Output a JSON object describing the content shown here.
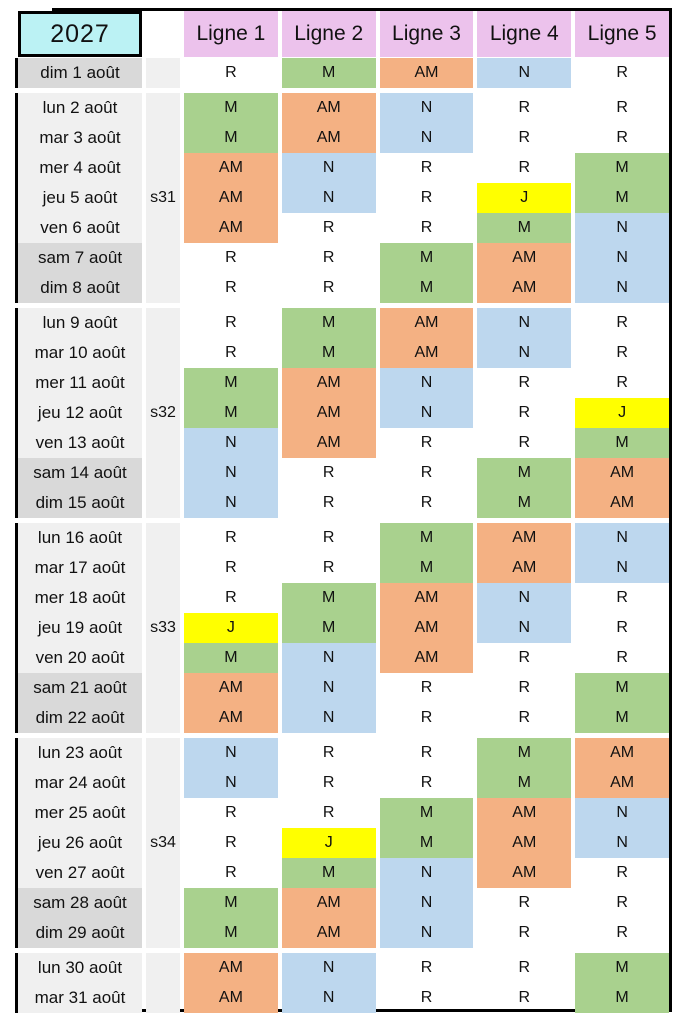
{
  "title": {
    "year": "2027"
  },
  "columns": [
    "Ligne 1",
    "Ligne 2",
    "Ligne 3",
    "Ligne 4",
    "Ligne 5"
  ],
  "colors": {
    "year_bg": "#BBF2F4",
    "header_bg": "#ECC2EC",
    "weekday_bg": "#F0F0F0",
    "weekend_bg": "#D9D9D9",
    "weekcol_bg": "#F0F0F0",
    "border": "#000000",
    "shift_R": "#FFFFFF",
    "shift_M": "#A9D18E",
    "shift_AM": "#F4B183",
    "shift_N": "#BDD7EE",
    "shift_J": "#FFFF00"
  },
  "schedule": {
    "type": "table",
    "shift_codes_visible": [
      "R",
      "M",
      "AM",
      "N",
      "J"
    ],
    "sections": [
      {
        "rows": [
          {
            "date": "dim 1 août",
            "week": "",
            "weekend": true,
            "values": [
              "R",
              "M",
              "AM",
              "N",
              "R"
            ]
          }
        ]
      },
      {
        "rows": [
          {
            "date": "lun 2 août",
            "week": "",
            "weekend": false,
            "values": [
              "M",
              "AM",
              "N",
              "R",
              "R"
            ]
          },
          {
            "date": "mar 3 août",
            "week": "",
            "weekend": false,
            "values": [
              "M",
              "AM",
              "N",
              "R",
              "R"
            ]
          },
          {
            "date": "mer 4 août",
            "week": "",
            "weekend": false,
            "values": [
              "AM",
              "N",
              "R",
              "R",
              "M"
            ]
          },
          {
            "date": "jeu 5 août",
            "week": "s31",
            "weekend": false,
            "values": [
              "AM",
              "N",
              "R",
              "J",
              "M"
            ]
          },
          {
            "date": "ven 6 août",
            "week": "",
            "weekend": false,
            "values": [
              "AM",
              "R",
              "R",
              "M",
              "N"
            ]
          },
          {
            "date": "sam 7 août",
            "week": "",
            "weekend": true,
            "values": [
              "R",
              "R",
              "M",
              "AM",
              "N"
            ]
          },
          {
            "date": "dim 8 août",
            "week": "",
            "weekend": true,
            "values": [
              "R",
              "R",
              "M",
              "AM",
              "N"
            ]
          }
        ]
      },
      {
        "rows": [
          {
            "date": "lun 9 août",
            "week": "",
            "weekend": false,
            "values": [
              "R",
              "M",
              "AM",
              "N",
              "R"
            ]
          },
          {
            "date": "mar 10 août",
            "week": "",
            "weekend": false,
            "values": [
              "R",
              "M",
              "AM",
              "N",
              "R"
            ]
          },
          {
            "date": "mer 11 août",
            "week": "",
            "weekend": false,
            "values": [
              "M",
              "AM",
              "N",
              "R",
              "R"
            ]
          },
          {
            "date": "jeu 12 août",
            "week": "s32",
            "weekend": false,
            "values": [
              "M",
              "AM",
              "N",
              "R",
              "J"
            ]
          },
          {
            "date": "ven 13 août",
            "week": "",
            "weekend": false,
            "values": [
              "N",
              "AM",
              "R",
              "R",
              "M"
            ]
          },
          {
            "date": "sam 14 août",
            "week": "",
            "weekend": true,
            "values": [
              "N",
              "R",
              "R",
              "M",
              "AM"
            ]
          },
          {
            "date": "dim 15 août",
            "week": "",
            "weekend": true,
            "values": [
              "N",
              "R",
              "R",
              "M",
              "AM"
            ]
          }
        ]
      },
      {
        "rows": [
          {
            "date": "lun 16 août",
            "week": "",
            "weekend": false,
            "values": [
              "R",
              "R",
              "M",
              "AM",
              "N"
            ]
          },
          {
            "date": "mar 17 août",
            "week": "",
            "weekend": false,
            "values": [
              "R",
              "R",
              "M",
              "AM",
              "N"
            ]
          },
          {
            "date": "mer 18 août",
            "week": "",
            "weekend": false,
            "values": [
              "R",
              "M",
              "AM",
              "N",
              "R"
            ]
          },
          {
            "date": "jeu 19 août",
            "week": "s33",
            "weekend": false,
            "values": [
              "J",
              "M",
              "AM",
              "N",
              "R"
            ]
          },
          {
            "date": "ven 20 août",
            "week": "",
            "weekend": false,
            "values": [
              "M",
              "N",
              "AM",
              "R",
              "R"
            ]
          },
          {
            "date": "sam 21 août",
            "week": "",
            "weekend": true,
            "values": [
              "AM",
              "N",
              "R",
              "R",
              "M"
            ]
          },
          {
            "date": "dim 22 août",
            "week": "",
            "weekend": true,
            "values": [
              "AM",
              "N",
              "R",
              "R",
              "M"
            ]
          }
        ]
      },
      {
        "rows": [
          {
            "date": "lun 23 août",
            "week": "",
            "weekend": false,
            "values": [
              "N",
              "R",
              "R",
              "M",
              "AM"
            ]
          },
          {
            "date": "mar 24 août",
            "week": "",
            "weekend": false,
            "values": [
              "N",
              "R",
              "R",
              "M",
              "AM"
            ]
          },
          {
            "date": "mer 25 août",
            "week": "",
            "weekend": false,
            "values": [
              "R",
              "R",
              "M",
              "AM",
              "N"
            ]
          },
          {
            "date": "jeu 26 août",
            "week": "s34",
            "weekend": false,
            "values": [
              "R",
              "J",
              "M",
              "AM",
              "N"
            ]
          },
          {
            "date": "ven 27 août",
            "week": "",
            "weekend": false,
            "values": [
              "R",
              "M",
              "N",
              "AM",
              "R"
            ]
          },
          {
            "date": "sam 28 août",
            "week": "",
            "weekend": true,
            "values": [
              "M",
              "AM",
              "N",
              "R",
              "R"
            ]
          },
          {
            "date": "dim 29 août",
            "week": "",
            "weekend": true,
            "values": [
              "M",
              "AM",
              "N",
              "R",
              "R"
            ]
          }
        ]
      },
      {
        "rows": [
          {
            "date": "lun 30 août",
            "week": "",
            "weekend": false,
            "values": [
              "AM",
              "N",
              "R",
              "R",
              "M"
            ]
          },
          {
            "date": "mar 31 août",
            "week": "",
            "weekend": false,
            "values": [
              "AM",
              "N",
              "R",
              "R",
              "M"
            ]
          }
        ]
      }
    ]
  }
}
